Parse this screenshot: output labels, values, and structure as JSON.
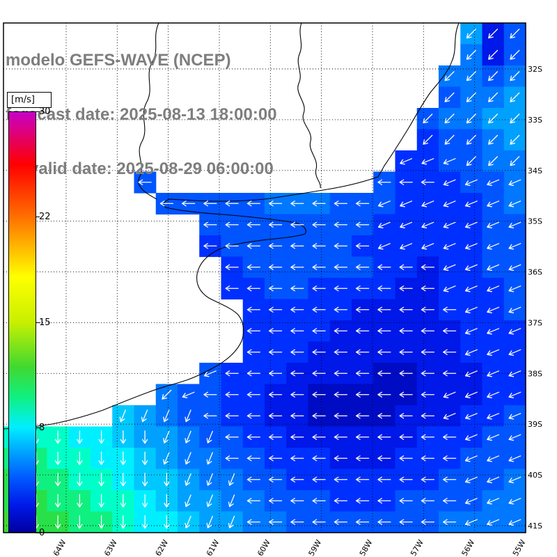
{
  "header": {
    "line1": "modelo GEFS-WAVE (NCEP)",
    "line2": "forecast date: 2025-08-13 18:00:00",
    "line3": "valid date: 2025-08-29 06:00:00"
  },
  "colorbar": {
    "unit_label": "[m/s]",
    "ticks": [
      "30",
      "22",
      "15",
      "8",
      "0"
    ],
    "gradient_stops": [
      {
        "pct": 0,
        "color": "#0000a0"
      },
      {
        "pct": 6.25,
        "color": "#0018e8"
      },
      {
        "pct": 12.5,
        "color": "#0055ff"
      },
      {
        "pct": 18.75,
        "color": "#00a0ff"
      },
      {
        "pct": 25,
        "color": "#00efff"
      },
      {
        "pct": 32.14,
        "color": "#10f080"
      },
      {
        "pct": 39.29,
        "color": "#40d830"
      },
      {
        "pct": 50,
        "color": "#c8f000"
      },
      {
        "pct": 60.71,
        "color": "#ffff00"
      },
      {
        "pct": 75,
        "color": "#ff7000"
      },
      {
        "pct": 87.5,
        "color": "#ff0000"
      },
      {
        "pct": 100,
        "color": "#c800c8"
      }
    ]
  },
  "axes": {
    "lat_labels": [
      "32S",
      "33S",
      "34S",
      "35S",
      "36S",
      "37S",
      "38S",
      "39S",
      "40S",
      "41S"
    ],
    "lon_labels": [
      "64W",
      "63W",
      "62W",
      "61W",
      "60W",
      "59W",
      "58W",
      "57W",
      "56W",
      "55W"
    ]
  },
  "map": {
    "land_color": "#ffffff",
    "coastline_color": "#000000",
    "arrow_color": "#ffffff",
    "grid_color": "#000000",
    "coastline_paths": [
      "M659,33 C650,55 657,70 649,88 C643,105 630,118 618,133 C606,150 598,165 588,182 C577,200 566,218 552,238 L543,254 C520,262 495,268 470,272 C440,277 410,282 380,286 C350,289 310,290 280,288 L243,286 C235,290 232,294 238,298 C260,303 290,306 320,308 C355,311 395,315 425,320 C437,324 442,330 438,336 C425,340 405,342 385,344 C360,347 335,350 315,358 C298,366 286,378 283,394 C281,408 287,420 300,428 C315,436 332,442 342,452 C350,462 352,476 347,490 C340,505 328,515 314,524 C300,532 285,540 268,546 C250,552 232,556 214,563 C192,571 170,580 148,589 C125,597 100,604 75,609 C50,613 25,615 5,616",
      "M433,33 C427,50 437,62 430,78 C424,93 436,105 429,120 C423,135 442,148 436,163 C431,177 450,188 446,203 C442,217 458,228 454,243 C451,255 462,262 460,270",
      "M228,33 C218,55 230,70 218,90 C208,110 222,128 210,148 C200,168 215,185 203,205 C194,222 210,238 200,255 C194,268 210,278 225,286"
    ]
  },
  "field": {
    "cols": 24,
    "rows": 24,
    "speed_rows": [
      ".....................624",
      ".....................524",
      "....................5545",
      "....................4556",
      "...................45566",
      "...................34456",
      "..................334455",
      "......4..........4333445",
      ".......44444555444333345",
      ".........444444443333344",
      ".........344444433333344",
      "..........34444443323344",
      "..........33443333223334",
      "...........3333322223334",
      "...........3333222222333",
      "...........3332222222333",
      ".........433322221122233",
      ".......54433221111122233",
      ".....7654433221111222334",
      "999887665443322222233344",
      "aa9988765544333222333444",
      "baa998776554433333334445",
      "bbaa99876655444333444455",
      "cbbaa9887665544444445555"
    ],
    "dir_rows": [
      ".....................aaa",
      ".....................aaa",
      "....................aaaa",
      "....................aaaa",
      "...................aaaaa",
      "...................aaaaa",
      "..................999aaa",
      "......8..........8889999",
      ".......88888888889999999",
      ".........888888889999999",
      ".........888888889999999",
      "..........88888888889999",
      "..........88888888889999",
      "...........8888888888999",
      "...........8888888888999",
      "...........8888888888999",
      ".........988888888888999",
      ".......a9888888888889999",
      ".....bbbb888888888889999",
      "cccccccbbb88888888888999",
      "cccccccbbb88888888888999",
      "ccccccccbbb8888888888999",
      "ccccccccbbb8888888888999",
      "ccccccccbbb8888888888999"
    ],
    "colormap_anchors": [
      [
        0,
        "#0000a0"
      ],
      [
        2,
        "#0018e8"
      ],
      [
        3,
        "#0030ff"
      ],
      [
        4,
        "#0055ff"
      ],
      [
        5,
        "#0078ff"
      ],
      [
        6,
        "#00a0ff"
      ],
      [
        7,
        "#00c8ff"
      ],
      [
        8,
        "#00efff"
      ],
      [
        9,
        "#00ffc8"
      ],
      [
        10,
        "#10f080"
      ],
      [
        11,
        "#28e048"
      ],
      [
        12,
        "#40d830"
      ],
      [
        13,
        "#70e018"
      ],
      [
        14,
        "#a0e800"
      ],
      [
        15,
        "#c8f000"
      ],
      [
        18,
        "#ffff00"
      ],
      [
        22,
        "#ff7000"
      ],
      [
        26,
        "#ff0000"
      ],
      [
        30,
        "#c800c8"
      ]
    ]
  }
}
